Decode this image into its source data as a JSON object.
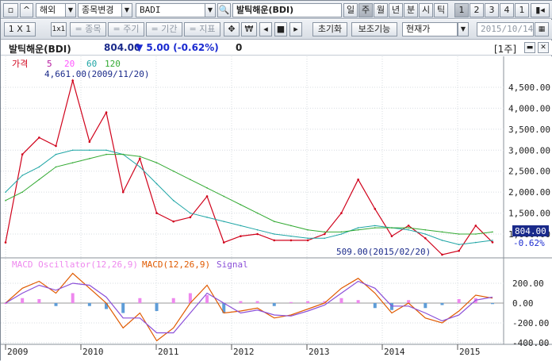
{
  "toolbar1": {
    "market": "해외",
    "stock_change": "종목변경",
    "symbol": "BADI",
    "name": "발틱해운(BDI)",
    "periods": [
      "일",
      "주",
      "월",
      "년",
      "분",
      "시",
      "틱"
    ],
    "period_selected": "주",
    "counts": [
      "1",
      "2",
      "3",
      "4",
      "1"
    ]
  },
  "toolbar2": {
    "ratio": "1 X 1",
    "ratio_icon": "1x1",
    "item_label": "= 종목",
    "cycle_label": "= 주기",
    "range_label": "= 기간",
    "indicator_label": "= 지표",
    "move_icon": "move-icon",
    "grid_icon": "grid-icon",
    "reset_label": "초기화",
    "aux_label": "보조기능",
    "price_type": "현재가",
    "date": "2015/10/14"
  },
  "info": {
    "name": "발틱해운(BDI)",
    "price": "804.00",
    "change": "▼ 5.00 (-0.62%)",
    "volume": "0",
    "period_tag": "[1주]"
  },
  "colors": {
    "price": "#d0021b",
    "ma5": "#b5179e",
    "ma20": "#ff55ff",
    "ma60": "#1ea5a5",
    "ma120": "#33aa33",
    "macd": "#e05a00",
    "signal": "#8b4fd8",
    "osc_pos": "#ee88ee",
    "osc_neg": "#5e9dd8"
  },
  "legend_top": {
    "price": "가격",
    "ma5": "5",
    "ma20": "20",
    "ma60": "60",
    "ma120": "120"
  },
  "legend_bottom": {
    "osc": "MACD Oscillator(12,26,9)",
    "macd": "MACD(12,26,9)",
    "signal": "Signal"
  },
  "annotations": {
    "high": "4,661.00(2009/11/20)",
    "low": "509.00(2015/02/20)"
  },
  "price_axis": [
    "4,500.00",
    "4,000.00",
    "3,500.00",
    "3,000.00",
    "2,500.00",
    "2,000.00",
    "1,500.00",
    "1,000.00"
  ],
  "price_current_label": "804.00",
  "price_change_label": "-0.62%",
  "macd_axis": [
    "200.00",
    "0.00",
    "-200.00",
    "-400.00"
  ],
  "years": [
    "2009",
    "2010",
    "2011",
    "2012",
    "2013",
    "2014",
    "2015"
  ],
  "chart_data": {
    "type": "line",
    "x": [
      "2009-01",
      "2009-04",
      "2009-07",
      "2009-10",
      "2009-11",
      "2010-01",
      "2010-04",
      "2010-07",
      "2010-10",
      "2011-01",
      "2011-04",
      "2011-07",
      "2011-10",
      "2012-01",
      "2012-04",
      "2012-07",
      "2012-10",
      "2013-01",
      "2013-04",
      "2013-07",
      "2013-10",
      "2013-12",
      "2014-03",
      "2014-06",
      "2014-09",
      "2014-12",
      "2015-02",
      "2015-05",
      "2015-08",
      "2015-10"
    ],
    "series": [
      {
        "name": "가격",
        "values": [
          800,
          2900,
          3300,
          3100,
          4661,
          3200,
          3900,
          2000,
          2800,
          1500,
          1300,
          1400,
          1900,
          800,
          950,
          1000,
          850,
          850,
          850,
          1000,
          1500,
          2300,
          1600,
          950,
          1200,
          900,
          509,
          600,
          1200,
          804
        ]
      },
      {
        "name": "60",
        "values": [
          2000,
          2400,
          2600,
          2900,
          3000,
          3000,
          3000,
          2900,
          2600,
          2200,
          1800,
          1500,
          1400,
          1300,
          1200,
          1100,
          1000,
          950,
          900,
          900,
          1000,
          1150,
          1200,
          1150,
          1100,
          1000,
          850,
          750,
          800,
          850
        ]
      },
      {
        "name": "120",
        "values": [
          1800,
          2000,
          2300,
          2600,
          2700,
          2800,
          2900,
          2900,
          2850,
          2700,
          2500,
          2300,
          2100,
          1900,
          1700,
          1500,
          1300,
          1200,
          1100,
          1050,
          1050,
          1100,
          1150,
          1150,
          1150,
          1100,
          1050,
          1000,
          1000,
          1050
        ]
      }
    ],
    "macd": {
      "series": [
        {
          "name": "MACD(12,26,9)",
          "values": [
            0,
            150,
            220,
            100,
            300,
            150,
            0,
            -250,
            -100,
            -380,
            -250,
            0,
            180,
            -100,
            -80,
            -50,
            -150,
            -120,
            -60,
            0,
            150,
            250,
            100,
            -100,
            0,
            -150,
            -200,
            -80,
            80,
            50
          ]
        },
        {
          "name": "Signal",
          "values": [
            0,
            100,
            180,
            130,
            200,
            180,
            60,
            -150,
            -150,
            -300,
            -300,
            -100,
            100,
            0,
            -100,
            -70,
            -120,
            -130,
            -80,
            -20,
            100,
            220,
            150,
            -30,
            -30,
            -100,
            -180,
            -120,
            30,
            60
          ]
        }
      ]
    },
    "ylim": [
      509,
      4661
    ],
    "macd_ylim": [
      -400,
      300
    ],
    "grid": true,
    "legend": "top-left"
  }
}
